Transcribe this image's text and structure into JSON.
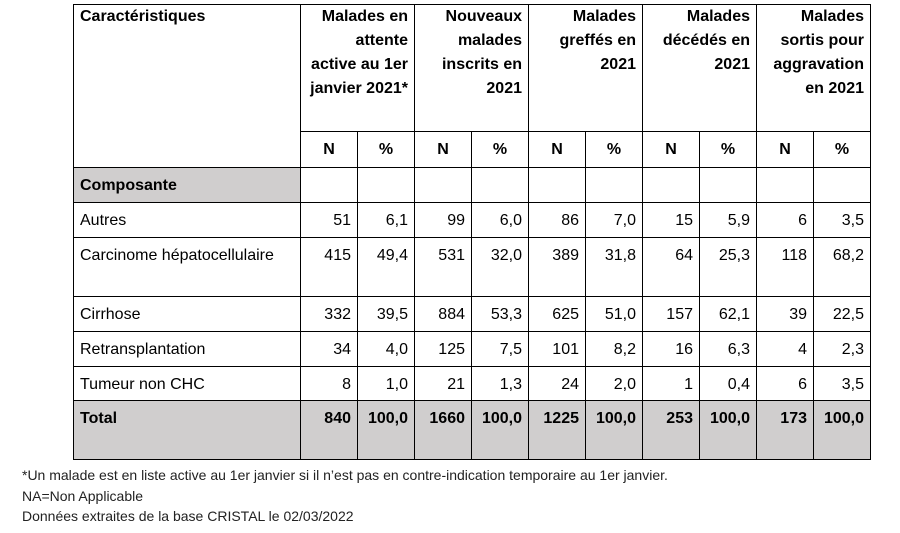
{
  "header": {
    "characteristics": "Caractéristiques",
    "groups": [
      "Malades en attente active au 1er janvier 2021*",
      "Nouveaux malades inscrits en 2021",
      "Malades greffés en 2021",
      "Malades décédés en 2021",
      "Malades sortis pour aggravation en 2021"
    ],
    "sub_n": "N",
    "sub_pct": "%"
  },
  "section_label": "Composante",
  "rows": [
    {
      "label": "Autres",
      "values": [
        "51",
        "6,1",
        "99",
        "6,0",
        "86",
        "7,0",
        "15",
        "5,9",
        "6",
        "3,5"
      ]
    },
    {
      "label": "Carcinome hépatocellulaire",
      "values": [
        "415",
        "49,4",
        "531",
        "32,0",
        "389",
        "31,8",
        "64",
        "25,3",
        "118",
        "68,2"
      ]
    },
    {
      "label": "Cirrhose",
      "values": [
        "332",
        "39,5",
        "884",
        "53,3",
        "625",
        "51,0",
        "157",
        "62,1",
        "39",
        "22,5"
      ]
    },
    {
      "label": "Retransplantation",
      "values": [
        "34",
        "4,0",
        "125",
        "7,5",
        "101",
        "8,2",
        "16",
        "6,3",
        "4",
        "2,3"
      ]
    },
    {
      "label": "Tumeur non CHC",
      "values": [
        "8",
        "1,0",
        "21",
        "1,3",
        "24",
        "2,0",
        "1",
        "0,4",
        "6",
        "3,5"
      ]
    }
  ],
  "total": {
    "label": "Total",
    "values": [
      "840",
      "100,0",
      "1660",
      "100,0",
      "1225",
      "100,0",
      "253",
      "100,0",
      "173",
      "100,0"
    ]
  },
  "notes": [
    "*Un malade est en liste active au 1er janvier si il n’est pas en contre-indication temporaire au 1er janvier.",
    "NA=Non Applicable",
    "Données extraites de la base CRISTAL le 02/03/2022"
  ]
}
